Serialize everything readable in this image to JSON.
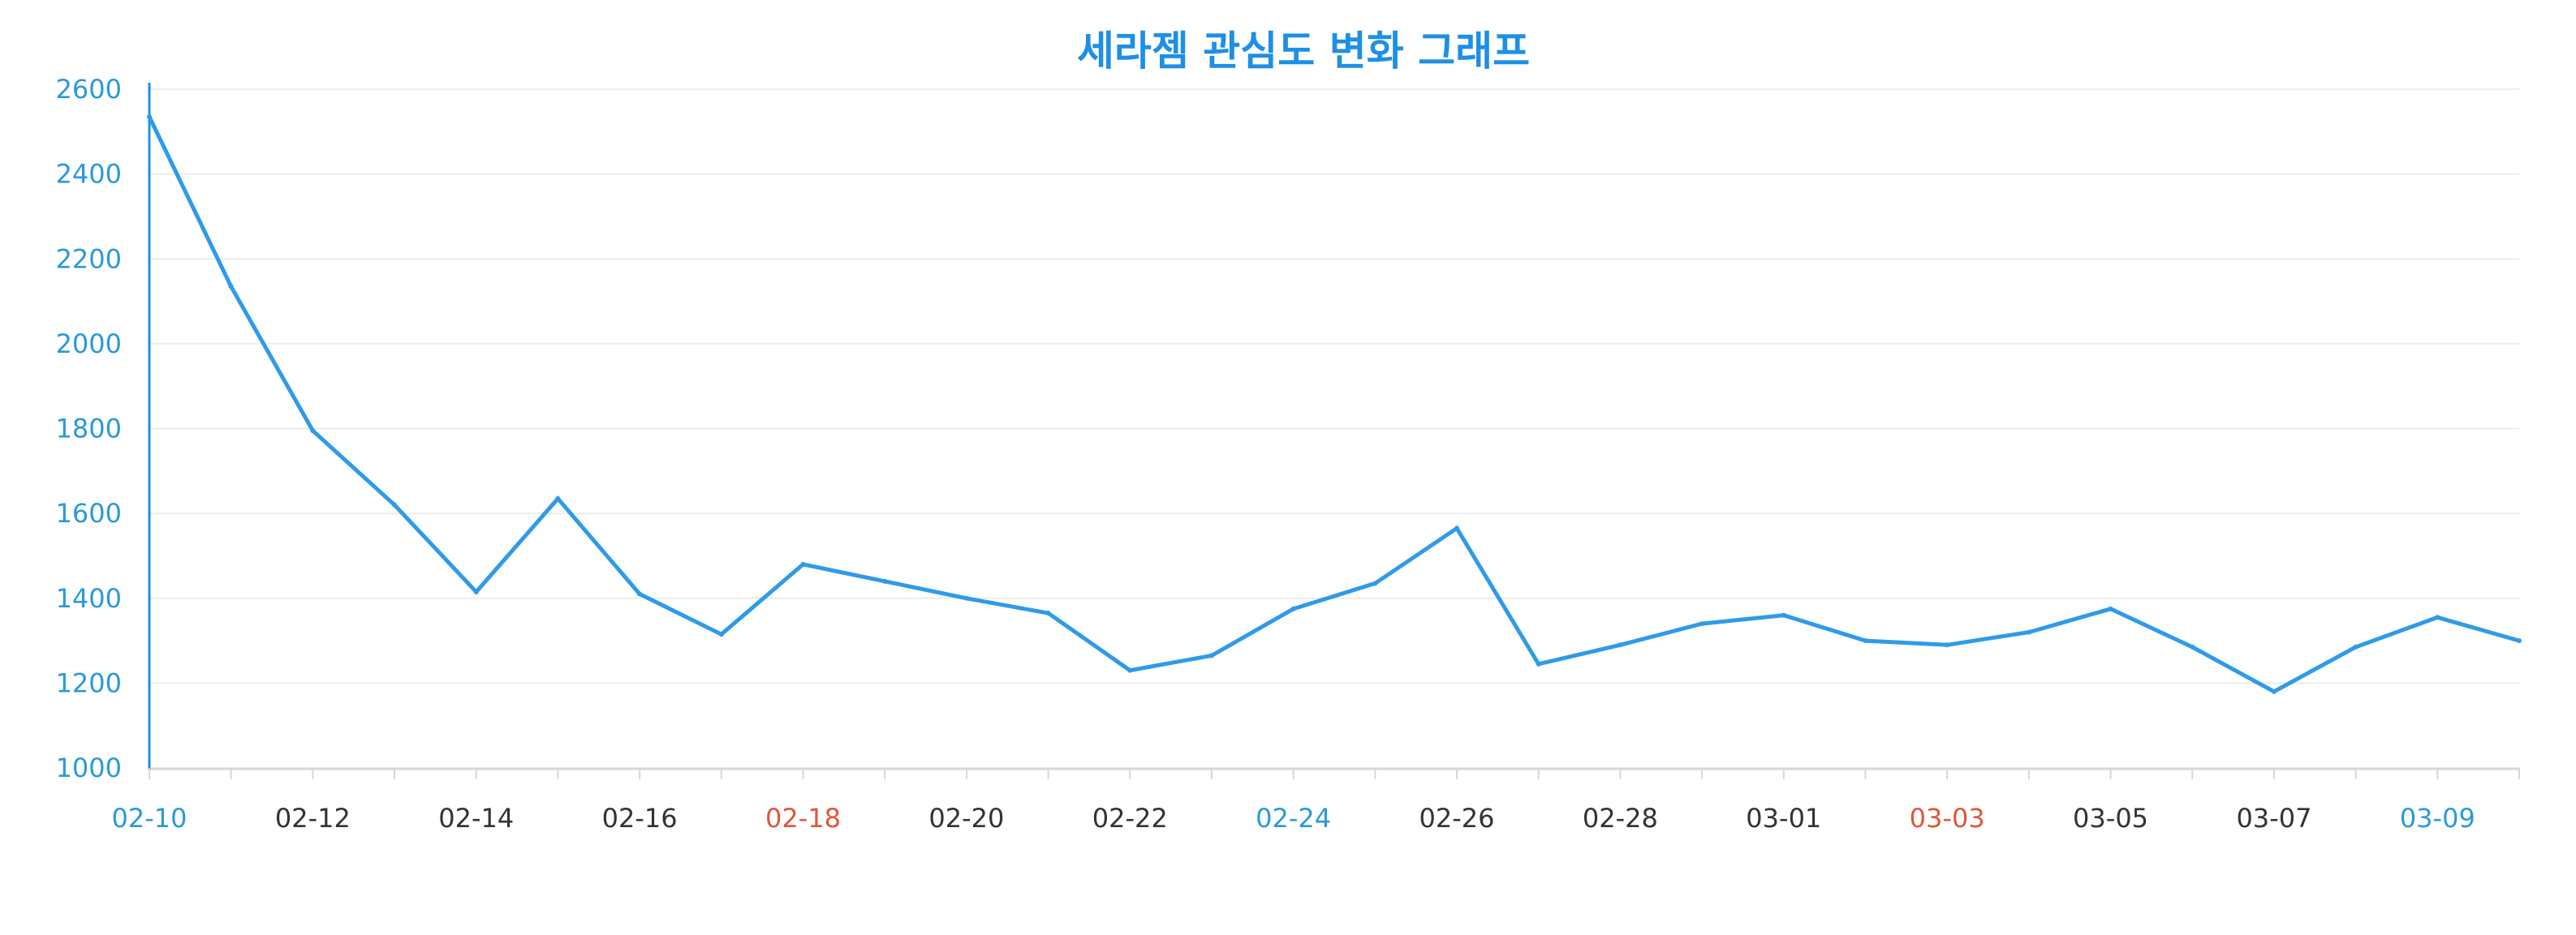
{
  "colors": {
    "accent": "#1e8fe6",
    "line": "#2f9be8",
    "grid": "#ececec",
    "axis": "#d6d6d6",
    "tick_default": "#333333",
    "tick_blue": "#2a9ad8",
    "tick_red": "#e0563a"
  },
  "chart_data": {
    "type": "line",
    "title": "세라젬 관심도 변화 그래프",
    "xlabel": "",
    "ylabel": "",
    "ylim": [
      1000,
      2600
    ],
    "yticks": [
      1000,
      1200,
      1400,
      1600,
      1800,
      2000,
      2200,
      2400,
      2600
    ],
    "grid": true,
    "legend": "none",
    "x": [
      "02-10",
      "02-11",
      "02-12",
      "02-13",
      "02-14",
      "02-15",
      "02-16",
      "02-17",
      "02-18",
      "02-19",
      "02-20",
      "02-21",
      "02-22",
      "02-23",
      "02-24",
      "02-25",
      "02-26",
      "02-27",
      "02-28",
      "02-29",
      "03-01",
      "03-02",
      "03-03",
      "03-04",
      "03-05",
      "03-06",
      "03-07",
      "03-08",
      "03-09",
      "03-10"
    ],
    "x_tick_labels": [
      {
        "text": "02-10",
        "color": "blue"
      },
      {
        "text": "02-12",
        "color": "default"
      },
      {
        "text": "02-14",
        "color": "default"
      },
      {
        "text": "02-16",
        "color": "default"
      },
      {
        "text": "02-18",
        "color": "red"
      },
      {
        "text": "02-20",
        "color": "default"
      },
      {
        "text": "02-22",
        "color": "default"
      },
      {
        "text": "02-24",
        "color": "blue"
      },
      {
        "text": "02-26",
        "color": "default"
      },
      {
        "text": "02-28",
        "color": "default"
      },
      {
        "text": "03-01",
        "color": "default"
      },
      {
        "text": "03-03",
        "color": "red"
      },
      {
        "text": "03-05",
        "color": "default"
      },
      {
        "text": "03-07",
        "color": "default"
      },
      {
        "text": "03-09",
        "color": "blue"
      }
    ],
    "series": [
      {
        "values": [
          2535,
          2135,
          1795,
          1620,
          1415,
          1635,
          1410,
          1315,
          1480,
          1440,
          1400,
          1365,
          1230,
          1265,
          1375,
          1435,
          1565,
          1245,
          1290,
          1340,
          1360,
          1300,
          1290,
          1320,
          1375,
          1285,
          1180,
          1285,
          1355,
          1300
        ]
      }
    ]
  }
}
